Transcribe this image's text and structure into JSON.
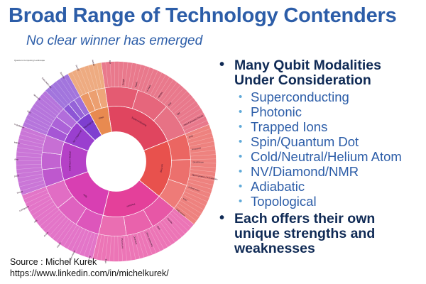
{
  "header": {
    "title": "Broad Range of Technology Contenders",
    "subtitle": "No clear winner has emerged"
  },
  "chart_caption": "Quantum Computing Landscape",
  "wheel": {
    "inner_segments": [
      {
        "label": "Superconducting",
        "color": "#e0455f",
        "value": 19
      },
      {
        "label": "Ion Trap",
        "color": "#e8514d",
        "value": 15
      },
      {
        "label": "Photonic",
        "color": "#e4409a",
        "value": 16
      },
      {
        "label": "Spin",
        "color": "#d83fb2",
        "value": 14
      },
      {
        "label": "Cold Atom / Neutral",
        "color": "#b541c7",
        "value": 10
      },
      {
        "label": "NV / Diamond",
        "color": "#9a3fcf",
        "value": 6
      },
      {
        "label": "Topological",
        "color": "#7e3fd0",
        "value": 4
      },
      {
        "label": "Other",
        "color": "#e88a50",
        "value": 5
      }
    ],
    "outer_labels": [
      "IBM",
      "Google",
      "Rigetti",
      "D-Wave",
      "Alibaba",
      "Intel",
      "IQM",
      "Oxford Quantum Circuits",
      "IonQ",
      "Honeywell",
      "Quantinuum",
      "Alpine Quantum Technologies",
      "Oxford Ionics",
      "NIST",
      "PsiQuantum",
      "Xanadu",
      "QuiX",
      "ORCA Computing",
      "Quandela",
      "Photonic Inc",
      "Silicon Quantum Computing",
      "Diraq",
      "Quantum Motion",
      "Equal1",
      "Archer",
      "HRL",
      "ColdQuanta",
      "Pasqal",
      "QuEra",
      "Atom Computing",
      "Infleqtion",
      "Quantum Brilliance",
      "SQC",
      "Microsoft",
      "Nokia Bell Labs",
      "Bleximo",
      "SeeQC",
      "Qilimanjaro"
    ]
  },
  "bullets": [
    {
      "text": "Many Qubit Modalities Under Consideration",
      "items": [
        "Superconducting",
        "Photonic",
        "Trapped Ions",
        "Spin/Quantum Dot",
        "Cold/Neutral/Helium Atom",
        "NV/Diamond/NMR",
        "Adiabatic",
        "Topological"
      ]
    },
    {
      "text": "Each offers their own unique strengths and weaknesses",
      "items": []
    }
  ],
  "source": {
    "line1": "Source : Michel Kurek",
    "line2": "https://www.linkedin.com/in/michelkurek/"
  },
  "glyphs": {
    "bullet": "•"
  }
}
